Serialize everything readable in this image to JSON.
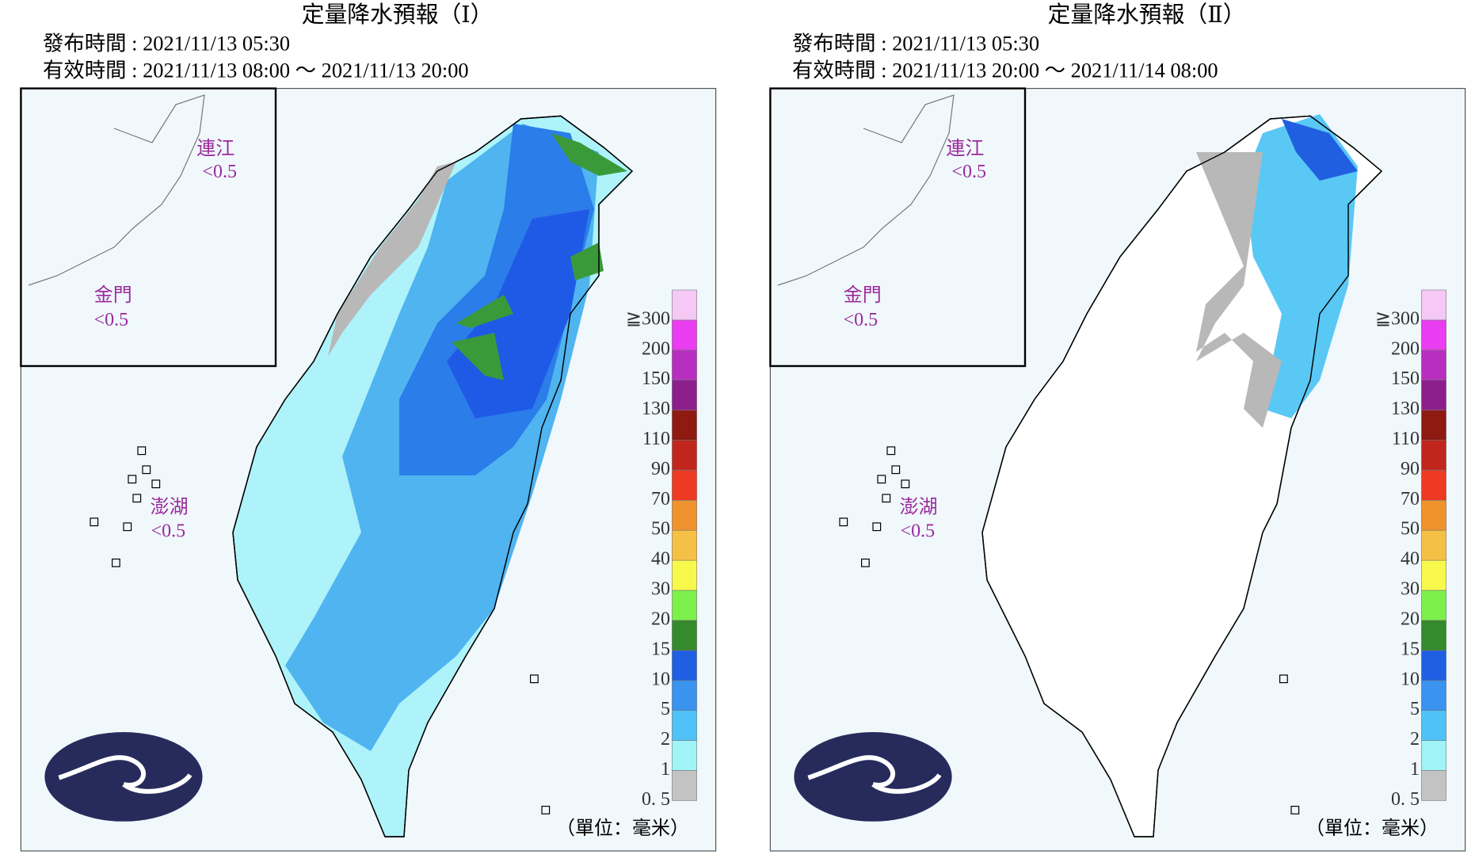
{
  "panels": [
    {
      "title": "定量降水預報（Ⅰ）",
      "issued": "發布時間 : 2021/11/13 05:30",
      "valid": "有效時間 : 2021/11/13 08:00 ～ 2021/11/13 20:00",
      "islands": [
        {
          "name": "連江",
          "value": "<0.5"
        },
        {
          "name": "金門",
          "value": "<0.5"
        },
        {
          "name": "澎湖",
          "value": "<0.5"
        }
      ]
    },
    {
      "title": "定量降水預報（Ⅱ）",
      "issued": "發布時間 : 2021/11/13 05:30",
      "valid": "有效時間 : 2021/11/13 20:00 ～ 2021/11/14 08:00",
      "islands": [
        {
          "name": "連江",
          "value": "<0.5"
        },
        {
          "name": "金門",
          "value": "<0.5"
        },
        {
          "name": "澎湖",
          "value": "<0.5"
        }
      ]
    }
  ],
  "legend": {
    "labels": [
      "0. 5",
      "1",
      "2",
      "5",
      "10",
      "15",
      "20",
      "30",
      "40",
      "50",
      "70",
      "90",
      "110",
      "130",
      "150",
      "200",
      "≧300"
    ],
    "colors": [
      "#c3c3c3",
      "#a0f4f8",
      "#4fc3f7",
      "#3a93ee",
      "#1e5fe3",
      "#358a2c",
      "#7ef04c",
      "#f8f84c",
      "#f5c046",
      "#f0922e",
      "#ee3a22",
      "#c0261c",
      "#8e1a12",
      "#8c1f8c",
      "#b82ec0",
      "#ea3cf0",
      "#f5c8f5"
    ]
  },
  "unit": "（單位：毫米）"
}
